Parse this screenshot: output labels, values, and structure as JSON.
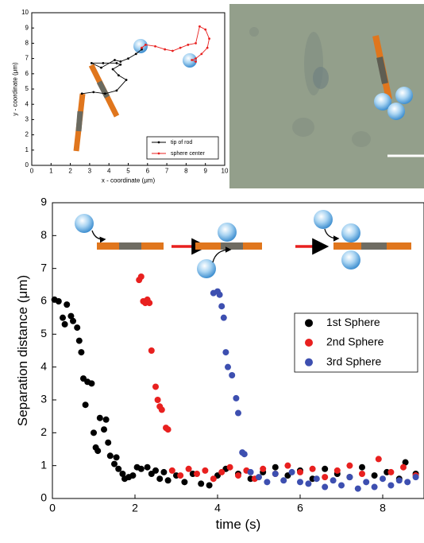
{
  "chart_data": [
    {
      "type": "line",
      "xlabel": "x - coordinate (μm)",
      "ylabel": "y - coordinate (μm)",
      "xlim": [
        0,
        10
      ],
      "ylim": [
        0,
        10
      ],
      "xticks": [
        0,
        1,
        2,
        3,
        4,
        5,
        6,
        7,
        8,
        9,
        10
      ],
      "yticks": [
        0,
        1,
        2,
        3,
        4,
        5,
        6,
        7,
        8,
        9,
        10
      ],
      "legend": "lower right",
      "series": [
        {
          "name": "tip of rod",
          "color": "#000000",
          "x": [
            2.6,
            3.2,
            3.8,
            4.4,
            4.9,
            4.5,
            4.2,
            4.6,
            4.4,
            3.7,
            3.1,
            3.6,
            4.3,
            4.6,
            5.0,
            5.4,
            5.7
          ],
          "values": [
            4.7,
            4.8,
            4.7,
            4.9,
            5.6,
            5.9,
            6.3,
            6.6,
            6.7,
            6.7,
            6.7,
            6.4,
            6.9,
            6.8,
            7.0,
            7.3,
            7.6
          ]
        },
        {
          "name": "sphere center",
          "color": "#e8201f",
          "x": [
            5.7,
            5.9,
            6.4,
            6.9,
            7.3,
            7.7,
            8.1,
            8.5,
            8.7,
            9.0,
            9.2,
            9.1,
            8.8,
            8.5,
            8.3,
            8.5
          ],
          "values": [
            7.7,
            7.9,
            7.8,
            7.6,
            7.5,
            7.7,
            7.9,
            8.0,
            9.1,
            8.9,
            8.3,
            7.7,
            7.3,
            7.0,
            6.9,
            6.8
          ]
        }
      ]
    },
    {
      "type": "scatter",
      "xlabel": "time (s)",
      "ylabel": "Separation distance (μm)",
      "xlim": [
        0,
        9
      ],
      "ylim": [
        0,
        9
      ],
      "xticks": [
        0,
        2,
        4,
        6,
        8
      ],
      "yticks": [
        0,
        1,
        2,
        3,
        4,
        5,
        6,
        7,
        8,
        9
      ],
      "legend": "center right",
      "series": [
        {
          "name": "1st Sphere",
          "color": "#000000",
          "x": [
            0.05,
            0.15,
            0.25,
            0.35,
            0.3,
            0.45,
            0.5,
            0.6,
            0.65,
            0.7,
            0.75,
            0.85,
            0.8,
            0.95,
            1.0,
            1.05,
            1.1,
            1.15,
            1.25,
            1.3,
            1.35,
            1.4,
            1.5,
            1.55,
            1.6,
            1.7,
            1.75,
            1.85,
            1.95,
            2.05,
            2.15,
            2.3,
            2.4,
            2.5,
            2.6,
            2.7,
            2.8,
            3.0,
            3.2,
            3.4,
            3.6,
            3.8,
            4.0,
            4.2,
            4.5,
            4.8,
            5.1,
            5.4,
            5.7,
            6.0,
            6.3,
            6.6,
            6.9,
            7.2,
            7.5,
            7.8,
            8.1,
            8.4,
            8.55,
            8.8
          ],
          "values": [
            6.05,
            6.0,
            5.5,
            5.9,
            5.3,
            5.55,
            5.4,
            5.2,
            4.8,
            4.45,
            3.65,
            3.55,
            2.85,
            3.5,
            2.0,
            1.55,
            1.45,
            2.45,
            2.1,
            2.4,
            1.7,
            1.3,
            1.05,
            1.25,
            0.9,
            0.75,
            0.6,
            0.65,
            0.7,
            0.95,
            0.9,
            0.95,
            0.75,
            0.85,
            0.6,
            0.8,
            0.55,
            0.7,
            0.5,
            0.75,
            0.45,
            0.4,
            0.7,
            0.9,
            0.75,
            0.6,
            0.8,
            0.95,
            0.7,
            0.85,
            0.6,
            0.9,
            0.75,
            0.65,
            0.95,
            0.7,
            0.8,
            0.6,
            1.1,
            0.75
          ]
        },
        {
          "name": "2nd Sphere",
          "color": "#e8201f",
          "x": [
            2.1,
            2.15,
            2.2,
            2.25,
            2.3,
            2.35,
            2.4,
            2.5,
            2.55,
            2.6,
            2.65,
            2.75,
            2.8,
            2.9,
            3.1,
            3.3,
            3.5,
            3.7,
            3.9,
            4.1,
            4.3,
            4.5,
            4.7,
            4.9,
            5.1,
            5.4,
            5.7,
            6.0,
            6.3,
            6.6,
            6.9,
            7.2,
            7.5,
            7.9,
            8.2,
            8.5,
            8.8
          ],
          "values": [
            6.65,
            6.75,
            6.0,
            5.95,
            6.05,
            5.95,
            4.5,
            3.4,
            3.0,
            2.8,
            2.7,
            2.15,
            2.1,
            0.85,
            0.7,
            0.9,
            0.75,
            0.85,
            0.6,
            0.8,
            0.95,
            0.7,
            0.85,
            0.6,
            0.9,
            0.75,
            1.0,
            0.8,
            0.9,
            0.65,
            0.85,
            1.0,
            0.75,
            1.2,
            0.8,
            0.95,
            0.7
          ]
        },
        {
          "name": "3rd Sphere",
          "color": "#3d4fb0",
          "x": [
            3.9,
            4.0,
            4.05,
            4.1,
            4.15,
            4.2,
            4.25,
            4.35,
            4.45,
            4.5,
            4.6,
            4.65,
            4.8,
            5.0,
            5.2,
            5.4,
            5.6,
            5.8,
            6.0,
            6.2,
            6.4,
            6.6,
            6.8,
            7.0,
            7.2,
            7.4,
            7.6,
            7.8,
            8.0,
            8.2,
            8.4,
            8.6,
            8.8
          ],
          "values": [
            6.25,
            6.3,
            6.2,
            5.85,
            5.5,
            4.45,
            4.0,
            3.75,
            3.05,
            2.6,
            1.4,
            1.35,
            0.8,
            0.65,
            0.5,
            0.75,
            0.55,
            0.8,
            0.5,
            0.45,
            0.6,
            0.35,
            0.55,
            0.4,
            0.65,
            0.3,
            0.5,
            0.35,
            0.6,
            0.4,
            0.55,
            0.5,
            0.65
          ]
        }
      ]
    }
  ]
}
